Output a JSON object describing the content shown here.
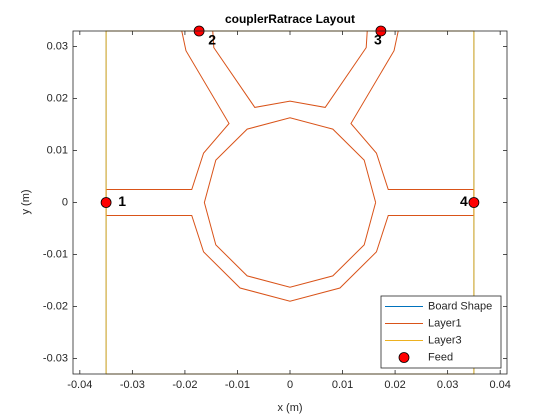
{
  "chart_data": {
    "type": "layout",
    "title": "couplerRatrace Layout",
    "x_label": "x (m)",
    "y_label": "y (m)",
    "xlim": [
      -0.0413,
      0.0413
    ],
    "ylim": [
      -0.033,
      0.033
    ],
    "xticks": [
      -0.04,
      -0.03,
      -0.02,
      -0.01,
      0,
      0.01,
      0.02,
      0.03,
      0.04
    ],
    "yticks": [
      -0.03,
      -0.02,
      -0.01,
      0,
      0.01,
      0.02,
      0.03
    ],
    "legend": "lower right",
    "series": [
      {
        "name": "Board Shape",
        "kind": "line",
        "color": "#0072bd",
        "x": [
          -0.035,
          0.035,
          0.035,
          -0.035,
          -0.035
        ],
        "y": [
          -0.033,
          -0.033,
          0.033,
          0.033,
          -0.033
        ]
      },
      {
        "name": "Layer1",
        "kind": "line",
        "color": "#d95319",
        "x": [
          -0.035,
          -0.0187,
          -0.01645,
          -0.0095,
          0,
          0.0095,
          0.01645,
          0.0187,
          0.035,
          0.035,
          0.0187,
          0.01645,
          0.0116,
          0.0198,
          0.0206,
          0.0147,
          0.0145,
          0.0067,
          0,
          -0.0067,
          -0.0145,
          -0.0147,
          -0.0206,
          -0.0198,
          -0.0116,
          -0.01645,
          -0.0187,
          -0.035,
          -0.035,
          null,
          0.0163,
          0.01412,
          0.00815,
          0,
          -0.00815,
          -0.01412,
          -0.0163,
          -0.01412,
          -0.00815,
          0,
          0.00815,
          0.01412,
          0.0163
        ],
        "y": [
          -0.0025,
          -0.0025,
          -0.0095,
          -0.01645,
          -0.019,
          -0.01645,
          -0.0095,
          -0.0025,
          -0.0025,
          0.0025,
          0.0025,
          0.0095,
          0.0152,
          0.0292,
          0.033,
          0.033,
          0.0298,
          0.0183,
          0.0195,
          0.0183,
          0.0298,
          0.033,
          0.033,
          0.0292,
          0.0152,
          0.0095,
          0.0025,
          0.0025,
          -0.0025,
          null,
          0,
          0.00815,
          0.01412,
          0.0163,
          0.01412,
          0.00815,
          0,
          -0.00815,
          -0.01412,
          -0.0163,
          -0.01412,
          -0.00815,
          0
        ]
      },
      {
        "name": "Layer3",
        "kind": "line",
        "color": "#edb120",
        "x": [
          -0.035,
          0.035,
          0.035,
          -0.035,
          -0.035
        ],
        "y": [
          -0.033,
          -0.033,
          0.033,
          0.033,
          -0.033
        ]
      },
      {
        "name": "Feed",
        "kind": "marker",
        "color": "#ff0000",
        "x": [
          -0.035,
          -0.0173,
          0.0173,
          0.035
        ],
        "y": [
          0,
          0.033,
          0.033,
          0
        ],
        "point_labels": [
          "1",
          "2",
          "3",
          "4"
        ]
      }
    ]
  }
}
